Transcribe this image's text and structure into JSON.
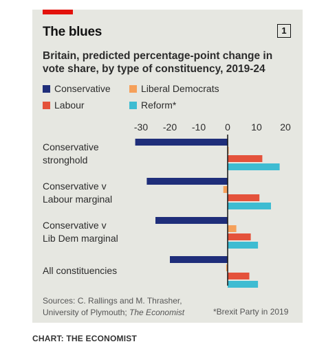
{
  "header": {
    "title": "The blues",
    "chart_number": "1",
    "subtitle": "Britain, predicted percentage-point change in vote share, by type of constituency, 2019-24"
  },
  "colors": {
    "panel": "#e6e7e1",
    "red_tab": "#e3120b",
    "Conservative": "#1f2e7a",
    "Liberal Democrats": "#f5a05a",
    "Labour": "#e4523b",
    "Reform*": "#3ebcd2",
    "zero_line": "#121212"
  },
  "chart_data": {
    "type": "bar",
    "orientation": "horizontal",
    "title": "The blues",
    "subtitle": "Britain, predicted percentage-point change in vote share, by type of constituency, 2019-24",
    "categories": [
      [
        "Conservative",
        "stronghold"
      ],
      [
        "Conservative v",
        "Labour marginal"
      ],
      [
        "Conservative v",
        "Lib Dem marginal"
      ],
      [
        "All constituencies"
      ]
    ],
    "series": [
      {
        "name": "Conservative",
        "values": [
          -32,
          -28,
          -25,
          -20
        ]
      },
      {
        "name": "Liberal Democrats",
        "values": [
          0,
          -1.5,
          3,
          -0.5
        ]
      },
      {
        "name": "Labour",
        "values": [
          12,
          11,
          8,
          7.5
        ]
      },
      {
        "name": "Reform*",
        "values": [
          18,
          15,
          10.5,
          10.5
        ]
      }
    ],
    "xlim": [
      -30,
      20
    ],
    "xticks": [
      -30,
      -20,
      -10,
      0,
      10,
      20
    ],
    "tick_labels": [
      "-30",
      "-20",
      "-10",
      "0",
      "10",
      "20"
    ],
    "legend": {
      "placement": "top",
      "entries": [
        "Conservative",
        "Liberal Democrats",
        "Labour",
        "Reform*"
      ]
    },
    "grid": false
  },
  "footer": {
    "source_line1": "Sources: C. Rallings and M. Thrasher,",
    "source_line2_plain": "University of Plymouth; ",
    "source_line2_italic": "The Economist",
    "footnote": "*Brexit Party in 2019",
    "credit": "CHART: THE ECONOMIST"
  }
}
